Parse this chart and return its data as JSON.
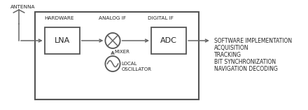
{
  "antenna_label": "ANTENNA",
  "hardware_label": "HARDWARE",
  "analog_if_label": "ANALOG IF",
  "digital_if_label": "DIGITAL IF",
  "mixer_label": "MIXER",
  "oscillator_label": "LOCAL\nOSCILLATOR",
  "lna_label": "LNA",
  "adc_label": "ADC",
  "right_text_lines": [
    "SOFTWARE IMPLEMENTATION",
    "ACQUISITION",
    "TRACKING",
    "BIT SYNCHRONIZATION",
    "NAVIGATION DECODING"
  ],
  "edge_color": "#555555",
  "line_color": "#666666",
  "text_color": "#222222",
  "fig_width": 4.4,
  "fig_height": 1.57,
  "dpi": 100
}
